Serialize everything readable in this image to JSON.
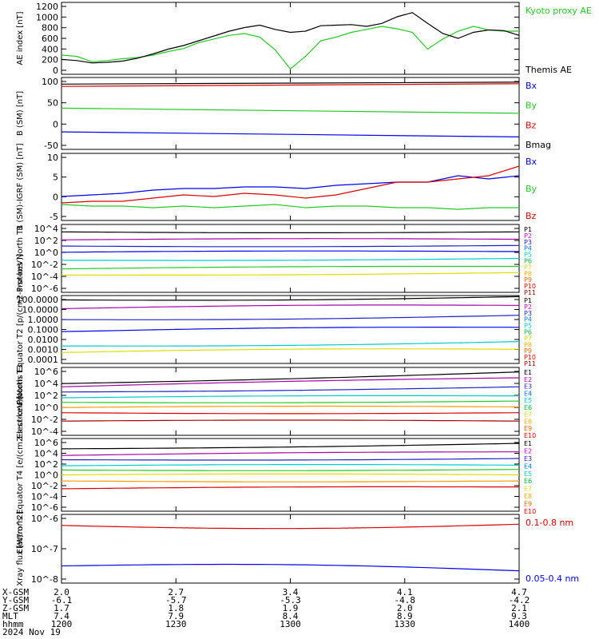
{
  "colors": {
    "black": "#000000",
    "blue": "#0000ee",
    "green": "#22cc22",
    "red": "#dd0000",
    "channels": [
      "#000000",
      "#cc00cc",
      "#2222cc",
      "#0077ff",
      "#00cccc",
      "#00bb44",
      "#dddd00",
      "#ffaa00",
      "#ff6600",
      "#ee0000",
      "#aa0000"
    ]
  },
  "x_ticks": [
    "1200",
    "1230",
    "1300",
    "1330",
    "1400"
  ],
  "ephemeris": {
    "labels": [
      "X-GSM",
      "Y-GSM",
      "Z-GSM",
      "MLT",
      "hhmm",
      "2024 Nov 19"
    ],
    "rows": [
      [
        "2.0",
        "2.7",
        "3.4",
        "4.1",
        "4.7"
      ],
      [
        "-6.1",
        "-5.7",
        "-5.3",
        "-4.8",
        "-4.2"
      ],
      [
        "1.7",
        "1.8",
        "1.9",
        "2.0",
        "2.1"
      ],
      [
        "7.4",
        "7.9",
        "8.4",
        "8.9",
        "9.3"
      ],
      [
        "1200",
        "1230",
        "1300",
        "1330",
        "1400"
      ]
    ]
  },
  "chart_data": [
    {
      "type": "line",
      "ylabel": "AE index [nT]",
      "yticks": [
        "1200",
        "1000",
        "800",
        "600",
        "400",
        "200",
        "0"
      ],
      "ylim": [
        0,
        1200
      ],
      "legend": [
        "Kyoto proxy AE",
        "Themis AE"
      ],
      "legend_colors": [
        "green",
        "black"
      ],
      "series": [
        {
          "name": "Kyoto proxy AE",
          "color": "green",
          "x": [
            0,
            4,
            8,
            12,
            16,
            20,
            24,
            28,
            32,
            36,
            40,
            44,
            48,
            52,
            56,
            60,
            64,
            68,
            72,
            76,
            80,
            84,
            88,
            92,
            96,
            100,
            104,
            108,
            112,
            116,
            120
          ],
          "values": [
            320,
            300,
            210,
            230,
            260,
            280,
            320,
            380,
            430,
            530,
            590,
            650,
            680,
            620,
            410,
            90,
            300,
            560,
            620,
            700,
            750,
            800,
            760,
            700,
            420,
            590,
            720,
            800,
            740,
            720,
            720
          ]
        },
        {
          "name": "Themis AE",
          "color": "black",
          "x": [
            0,
            4,
            8,
            12,
            16,
            20,
            24,
            28,
            32,
            36,
            40,
            44,
            48,
            52,
            56,
            60,
            64,
            68,
            72,
            76,
            80,
            84,
            88,
            92,
            96,
            100,
            104,
            108,
            112,
            116,
            120
          ],
          "values": [
            250,
            230,
            190,
            200,
            220,
            270,
            340,
            420,
            480,
            560,
            640,
            720,
            780,
            820,
            750,
            700,
            720,
            810,
            820,
            830,
            800,
            850,
            960,
            1030,
            850,
            680,
            600,
            700,
            740,
            730,
            650
          ]
        }
      ]
    },
    {
      "type": "line",
      "ylabel": "B (SM) [nT]",
      "yticks": [
        "100",
        "50",
        "0",
        "-50"
      ],
      "ylim": [
        -65,
        120
      ],
      "legend": [
        "Bx",
        "By",
        "Bz",
        "Bmag"
      ],
      "legend_colors": [
        "blue",
        "green",
        "red",
        "black"
      ],
      "series": [
        {
          "name": "Bmag",
          "color": "black",
          "x": [
            0,
            120
          ],
          "values": [
            103,
            108
          ]
        },
        {
          "name": "Bz",
          "color": "red",
          "x": [
            0,
            120
          ],
          "values": [
            97,
            104
          ]
        },
        {
          "name": "By",
          "color": "green",
          "x": [
            0,
            120
          ],
          "values": [
            41,
            28
          ]
        },
        {
          "name": "Bx",
          "color": "blue",
          "x": [
            0,
            120
          ],
          "values": [
            -20,
            -33
          ]
        }
      ]
    },
    {
      "type": "line",
      "ylabel": "B (SM)-IGRF (SM) [nT]",
      "yticks": [
        "10",
        "5",
        "0",
        "-5"
      ],
      "ylim": [
        -7,
        14
      ],
      "legend": [
        "Bx",
        "By",
        "Bz"
      ],
      "legend_colors": [
        "blue",
        "green",
        "red"
      ],
      "series": [
        {
          "name": "Bx",
          "color": "blue",
          "x": [
            0,
            8,
            16,
            24,
            32,
            40,
            48,
            56,
            64,
            72,
            80,
            88,
            96,
            104,
            112,
            120
          ],
          "values": [
            0.5,
            1,
            1.5,
            2.5,
            3,
            3,
            3.5,
            3.5,
            3,
            4,
            4.5,
            5,
            5,
            7,
            6,
            7
          ]
        },
        {
          "name": "Bz",
          "color": "red",
          "x": [
            0,
            8,
            16,
            24,
            32,
            40,
            48,
            56,
            64,
            72,
            80,
            88,
            96,
            104,
            112,
            120
          ],
          "values": [
            -1.5,
            -1,
            -1,
            0,
            1,
            0.5,
            1.5,
            1,
            0,
            1,
            3,
            5,
            5,
            6,
            7,
            10
          ]
        },
        {
          "name": "By",
          "color": "green",
          "x": [
            0,
            8,
            16,
            24,
            32,
            40,
            48,
            56,
            64,
            72,
            80,
            88,
            96,
            104,
            112,
            120
          ],
          "values": [
            -2,
            -2.5,
            -2.5,
            -3,
            -2.5,
            -3,
            -2.5,
            -2,
            -3,
            -2.5,
            -2.5,
            -3,
            -3,
            -3.5,
            -3,
            -3
          ]
        }
      ]
    },
    {
      "type": "line",
      "log": true,
      "ylabel": "Protons North T1",
      "yticks": [
        "10^4",
        "10^2",
        "10^0",
        "10^-2",
        "10^-4",
        "10^-6"
      ],
      "ylim": [
        -7,
        4
      ],
      "legend": [
        "P1",
        "P2",
        "P3",
        "P4",
        "P5",
        "P6",
        "P7",
        "P8",
        "P9",
        "P10",
        "P11"
      ],
      "series": [
        {
          "name": "P1",
          "color": "black",
          "values": [
            2.8,
            2.8
          ]
        },
        {
          "name": "P2",
          "color": "purple",
          "values": [
            1.5,
            1.6
          ]
        },
        {
          "name": "P3",
          "color": "navy",
          "values": [
            0.5,
            0.6
          ]
        },
        {
          "name": "P4",
          "color": "blue",
          "values": [
            -0.5,
            -0.4
          ]
        },
        {
          "name": "P5",
          "color": "cyan",
          "values": [
            -1.8,
            -1.5
          ]
        },
        {
          "name": "P6",
          "color": "green",
          "values": [
            -3.2,
            -2.8
          ]
        },
        {
          "name": "P7",
          "color": "yellow",
          "values": [
            -4.2,
            -3.8
          ]
        }
      ]
    },
    {
      "type": "line",
      "log": true,
      "ylabel": "Protons Equator T2 [p/(cm2-s-sr-keV)]",
      "yticks": [
        "100.0000",
        "10.0000",
        "1.0000",
        "0.1000",
        "0.0100",
        "0.0010",
        "0.0001"
      ],
      "ylim": [
        -4,
        2.2
      ],
      "legend": [
        "P1",
        "P2",
        "P3",
        "P4",
        "P5",
        "P6",
        "P7",
        "P8",
        "P9",
        "P10",
        "P11"
      ],
      "series": [
        {
          "name": "P1",
          "color": "black",
          "values": [
            1.8,
            2.1
          ]
        },
        {
          "name": "P2",
          "color": "purple",
          "values": [
            1.0,
            1.3
          ]
        },
        {
          "name": "P3",
          "color": "navy",
          "values": [
            0.0,
            0.4
          ]
        },
        {
          "name": "P4",
          "color": "blue",
          "values": [
            -1.1,
            -0.7
          ]
        },
        {
          "name": "P5",
          "color": "cyan",
          "values": [
            -2.4,
            -2.0
          ]
        },
        {
          "name": "P6",
          "color": "yellow",
          "values": [
            -3.0,
            -2.7
          ]
        }
      ]
    },
    {
      "type": "line",
      "log": true,
      "ylabel": "Electrons North T3",
      "yticks": [
        "10^6",
        "10^4",
        "10^2",
        "10^0",
        "10^-2",
        "10^-4"
      ],
      "ylim": [
        -4.5,
        6
      ],
      "legend": [
        "E1",
        "E2",
        "E3",
        "E4",
        "E5",
        "E6",
        "E7",
        "E8",
        "E9",
        "E10"
      ],
      "series": [
        {
          "name": "E1",
          "color": "black",
          "values": [
            3.5,
            5.3
          ]
        },
        {
          "name": "E2",
          "color": "purple",
          "values": [
            3.0,
            4.4
          ]
        },
        {
          "name": "E3",
          "color": "navy",
          "values": [
            2.2,
            3.0
          ]
        },
        {
          "name": "E4",
          "color": "cyan",
          "values": [
            1.3,
            1.6
          ]
        },
        {
          "name": "E5",
          "color": "green",
          "values": [
            0.6,
            0.8
          ]
        },
        {
          "name": "E6",
          "color": "orange",
          "values": [
            -0.2,
            -0.1
          ]
        },
        {
          "name": "E7",
          "color": "red",
          "values": [
            -1.0,
            -1.0
          ]
        },
        {
          "name": "E8",
          "color": "darkred",
          "values": [
            -2.3,
            -2.3
          ]
        }
      ]
    },
    {
      "type": "line",
      "log": true,
      "ylabel": "Electrons Equator T4 [e/(cm2-s-sr-keV)]",
      "yticks": [
        "10^6",
        "10^4",
        "10^2",
        "10^0",
        "10^-2",
        "10^-4",
        "10^-6"
      ],
      "ylim": [
        -6,
        6
      ],
      "legend": [
        "E1",
        "E2",
        "E3",
        "E4",
        "E5",
        "E6",
        "E7",
        "E8",
        "E9",
        "E10"
      ],
      "series": [
        {
          "name": "E1",
          "color": "black",
          "values": [
            4.3,
            5.2
          ]
        },
        {
          "name": "E2",
          "color": "purple",
          "values": [
            3.2,
            3.8
          ]
        },
        {
          "name": "E3",
          "color": "navy",
          "values": [
            2.5,
            2.7
          ]
        },
        {
          "name": "E4",
          "color": "cyan",
          "values": [
            1.5,
            1.6
          ]
        },
        {
          "name": "E5",
          "color": "green",
          "values": [
            0.8,
            0.9
          ]
        },
        {
          "name": "E6",
          "color": "yellow",
          "values": [
            0.0,
            0.0
          ]
        },
        {
          "name": "E7",
          "color": "orange",
          "values": [
            -1.0,
            -1.0
          ]
        },
        {
          "name": "E8",
          "color": "red",
          "values": [
            -2.3,
            -2.0
          ]
        }
      ]
    },
    {
      "type": "line",
      "log": true,
      "ylabel": "Xray flux [W/m^2]",
      "yticks": [
        "10^-6",
        "10^-7",
        "10^-8"
      ],
      "ylim": [
        -8.4,
        -5.6
      ],
      "legend": [
        "0.1-0.8 nm",
        "0.05-0.4 nm"
      ],
      "legend_colors": [
        "red",
        "blue"
      ],
      "series": [
        {
          "name": "0.1-0.8 nm",
          "color": "red",
          "values": [
            -6.05,
            -6.0
          ]
        },
        {
          "name": "0.05-0.4 nm",
          "color": "blue",
          "values": [
            -7.7,
            -7.9
          ]
        }
      ]
    }
  ]
}
